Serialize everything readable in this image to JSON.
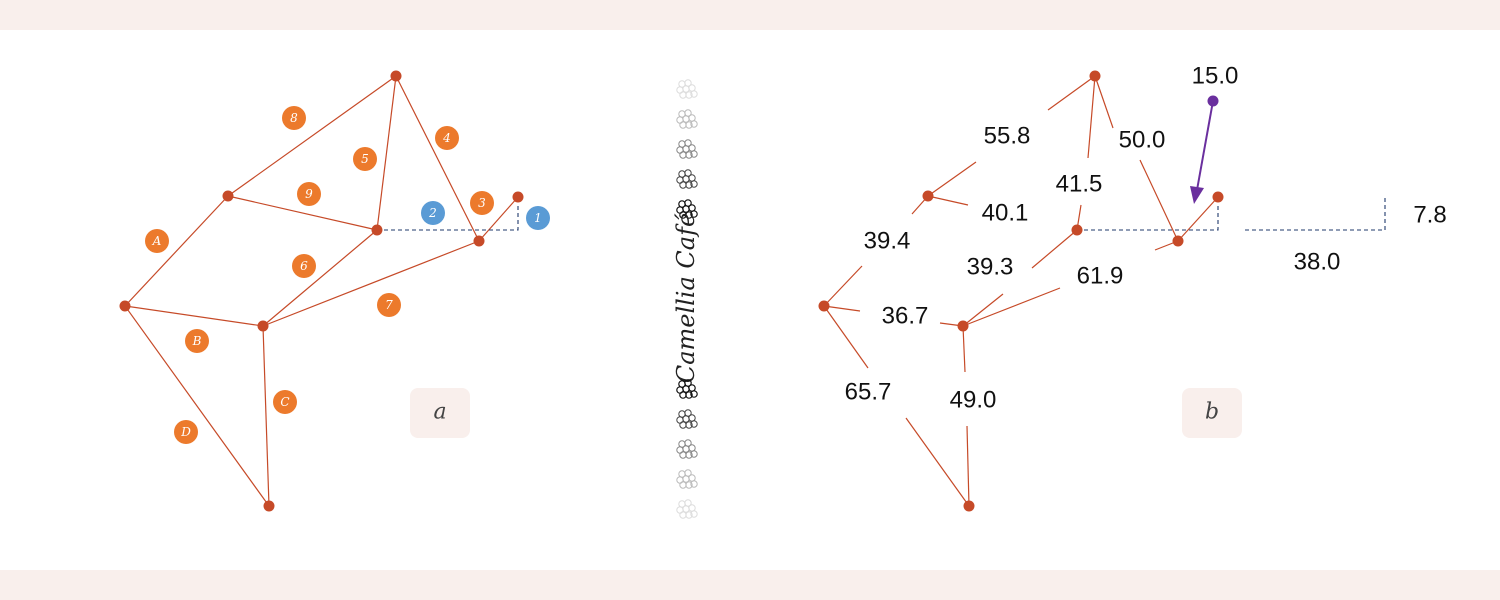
{
  "colors": {
    "edge": "#c64a28",
    "node": "#c64a28",
    "marker_orange": "#ec7a2c",
    "marker_blue": "#5a9bd5",
    "arrow": "#6a2f9e",
    "band": "#f9efec"
  },
  "panel_a": {
    "label": "a",
    "edge_markers": [
      "8",
      "4",
      "5",
      "9",
      "2",
      "3",
      "1",
      "A",
      "6",
      "7",
      "B",
      "C",
      "D"
    ]
  },
  "panel_b": {
    "label": "b",
    "edge_lengths": [
      "55.8",
      "50.0",
      "41.5",
      "40.1",
      "39.4",
      "39.3",
      "61.9",
      "36.7",
      "65.7",
      "49.0",
      "38.0"
    ],
    "arrow_label": "15.0",
    "dimension_label": "7.8"
  },
  "brand": {
    "name": "Camellia Café",
    "icon": "cluster-icon"
  }
}
